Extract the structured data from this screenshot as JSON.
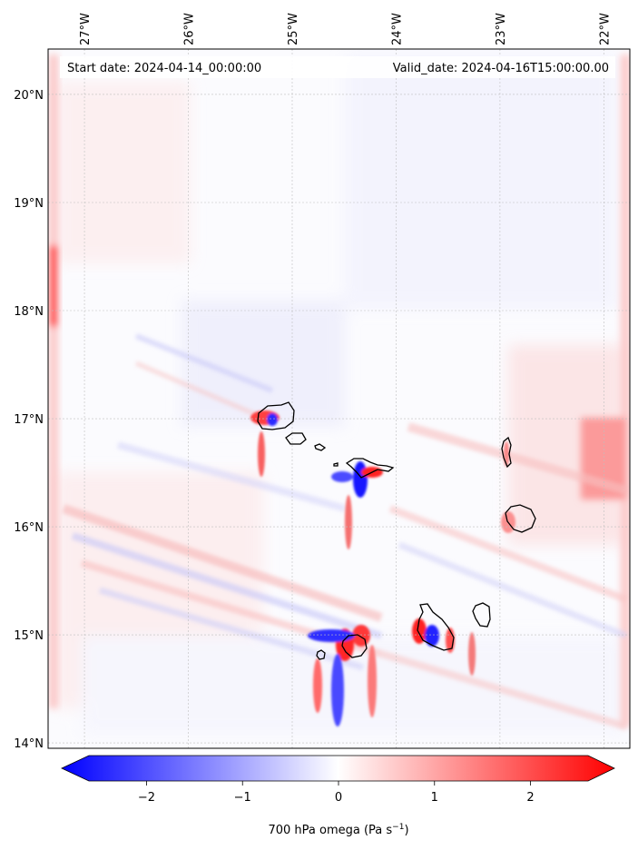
{
  "map": {
    "start_label": "Start date: 2024-04-14_00:00:00",
    "valid_label": "Valid_date: 2024-04-16T15:00:00.00",
    "lon_ticks": [
      "27°W",
      "26°W",
      "25°W",
      "24°W",
      "23°W",
      "22°W"
    ],
    "lat_ticks": [
      "20°N",
      "19°N",
      "18°N",
      "17°N",
      "16°N",
      "15°N",
      "14°N"
    ],
    "extent": {
      "lon_min": -27.35,
      "lon_max": -21.75,
      "lat_min": 13.95,
      "lat_max": 20.42
    },
    "gridlines": true,
    "field": "700 hPa omega",
    "colormap": "bwr"
  },
  "colorbar": {
    "ticks": [
      "−2",
      "−1",
      "0",
      "1",
      "2"
    ],
    "tick_values": [
      -2,
      -1,
      0,
      1,
      2
    ],
    "vmin": -2.6,
    "vmax": 2.6,
    "label_main": "700 hPa omega (Pa s",
    "label_sup": "−1",
    "label_end": ")",
    "neg_color": "#0000ff",
    "zero_color": "#ffffff",
    "pos_color": "#ff0000",
    "extend": "both"
  }
}
